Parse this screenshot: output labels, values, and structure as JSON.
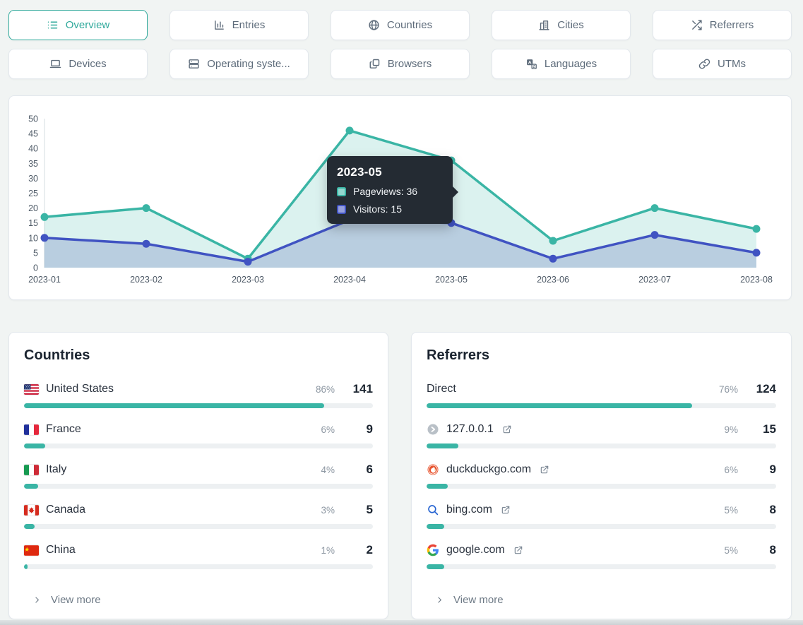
{
  "theme": {
    "accent_teal": "#2fa99b",
    "chart_teal": "#3ab5a5",
    "chart_indigo": "#4053c2",
    "tooltip_bg": "#242b33",
    "bar_fill": "#3ab5a5"
  },
  "tabs": {
    "rows": [
      [
        {
          "label": "Overview",
          "icon": "list",
          "active": true
        },
        {
          "label": "Entries",
          "icon": "entries-chart",
          "active": false
        },
        {
          "label": "Countries",
          "icon": "globe",
          "active": false
        },
        {
          "label": "Cities",
          "icon": "city",
          "active": false
        },
        {
          "label": "Referrers",
          "icon": "shuffle",
          "active": false
        }
      ],
      [
        {
          "label": "Devices",
          "icon": "laptop",
          "active": false
        },
        {
          "label": "Operating syste...",
          "icon": "server",
          "active": false
        },
        {
          "label": "Browsers",
          "icon": "browsers",
          "active": false
        },
        {
          "label": "Languages",
          "icon": "language",
          "active": false
        },
        {
          "label": "UTMs",
          "icon": "link",
          "active": false
        }
      ]
    ]
  },
  "chart_data": {
    "type": "area",
    "categories": [
      "2023-01",
      "2023-02",
      "2023-03",
      "2023-04",
      "2023-05",
      "2023-06",
      "2023-07",
      "2023-08"
    ],
    "series": [
      {
        "name": "Pageviews",
        "color": "#3ab5a5",
        "values": [
          17,
          20,
          3,
          46,
          36,
          9,
          20,
          13
        ]
      },
      {
        "name": "Visitors",
        "color": "#4053c2",
        "values": [
          10,
          8,
          2,
          16,
          15,
          3,
          11,
          5
        ]
      }
    ],
    "ylim": [
      0,
      50
    ],
    "ytick_step": 5,
    "grid": false,
    "legend_position": "tooltip-only",
    "tooltip": {
      "title": "2023-05",
      "rows": [
        {
          "series": "Pageviews",
          "value": 36
        },
        {
          "series": "Visitors",
          "value": 15
        }
      ]
    }
  },
  "countries": {
    "title": "Countries",
    "view_more_label": "View more",
    "rows": [
      {
        "flag": "us",
        "label": "United States",
        "percent": "86%",
        "value": "141"
      },
      {
        "flag": "fr",
        "label": "France",
        "percent": "6%",
        "value": "9"
      },
      {
        "flag": "it",
        "label": "Italy",
        "percent": "4%",
        "value": "6"
      },
      {
        "flag": "ca",
        "label": "Canada",
        "percent": "3%",
        "value": "5"
      },
      {
        "flag": "cn",
        "label": "China",
        "percent": "1%",
        "value": "2"
      }
    ]
  },
  "referrers": {
    "title": "Referrers",
    "view_more_label": "View more",
    "rows": [
      {
        "icon": null,
        "label": "Direct",
        "percent": "76%",
        "value": "124",
        "external": false
      },
      {
        "icon": "circle-chevron",
        "label": "127.0.0.1",
        "percent": "9%",
        "value": "15",
        "external": true
      },
      {
        "icon": "duckduckgo",
        "label": "duckduckgo.com",
        "percent": "6%",
        "value": "9",
        "external": true
      },
      {
        "icon": "bing-search",
        "label": "bing.com",
        "percent": "5%",
        "value": "8",
        "external": true
      },
      {
        "icon": "google",
        "label": "google.com",
        "percent": "5%",
        "value": "8",
        "external": true
      }
    ]
  }
}
